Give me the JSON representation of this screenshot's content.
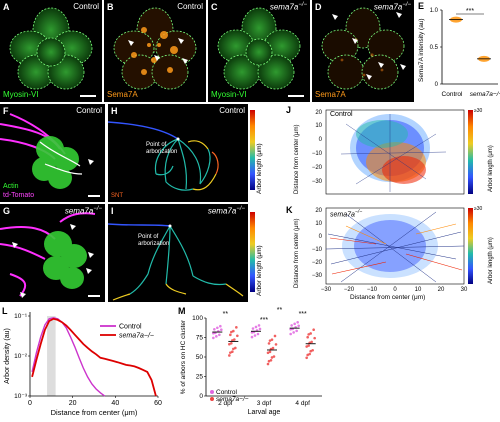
{
  "panels": {
    "A": {
      "letter": "A",
      "label": "Control",
      "stain": "Myosin-VI"
    },
    "B": {
      "letter": "B",
      "label": "Control",
      "stain": "Sema7A"
    },
    "C": {
      "letter": "C",
      "label": "sema7a",
      "label_sup": "−/−",
      "stain": "Myosin-VI"
    },
    "D": {
      "letter": "D",
      "label": "sema7a",
      "label_sup": "−/−",
      "stain": "Sema7A"
    },
    "E": {
      "letter": "E"
    },
    "F": {
      "letter": "F",
      "label": "Control",
      "stain1": "Actin",
      "stain2": "td-Tomato"
    },
    "G": {
      "letter": "G",
      "label": "sema7a",
      "label_sup": "−/−"
    },
    "H": {
      "letter": "H",
      "label": "Control",
      "annotation": "Point of arborization",
      "corner": "SNT"
    },
    "I": {
      "letter": "I",
      "label": "sema7a",
      "label_sup": "−/−",
      "annotation": "Point of arborization"
    },
    "J": {
      "letter": "J",
      "label": "Control"
    },
    "K": {
      "letter": "K",
      "label": "sema7a",
      "label_sup": "−/−"
    },
    "L": {
      "letter": "L"
    },
    "M": {
      "letter": "M"
    }
  },
  "colorbar": {
    "label": "Arbor length (μm)",
    "top": "≥30",
    "ticks": [
      "25",
      "20",
      "15",
      "10",
      "5",
      "0"
    ]
  },
  "axes": {
    "jk_y": "Distance from center (μm)",
    "jk_x": "Distance from center",
    "jk_x_unit": "(μm)",
    "jk_ticks": [
      "20",
      "10",
      "0",
      "−10",
      "−20",
      "−30"
    ],
    "jk_xticks": [
      "−30",
      "−20",
      "−10",
      "0",
      "10",
      "20",
      "30"
    ]
  },
  "chart_data": [
    {
      "panel": "E",
      "type": "scatter",
      "categories": [
        "Control",
        "sema7a−/−"
      ],
      "ylabel": "Sema7A intensity (au)",
      "ylim": [
        0,
        1.0
      ],
      "yticks": [
        "1.0",
        "0.5",
        "0"
      ],
      "values": [
        0.87,
        0.34
      ],
      "significance": "***"
    },
    {
      "panel": "L",
      "type": "line",
      "xlabel": "Distance from center (μm)",
      "ylabel": "Arbor density (au)",
      "xlim": [
        0,
        60
      ],
      "xticks": [
        "0",
        "20",
        "40",
        "60"
      ],
      "yticks": [
        "10⁻¹",
        "10⁻²",
        "10⁻³"
      ],
      "series": [
        {
          "name": "Control",
          "color": "#cc33cc",
          "x": [
            1,
            3,
            5,
            7,
            9,
            11,
            13,
            15,
            17,
            19,
            21,
            23,
            25,
            27,
            29,
            31,
            33,
            35
          ],
          "y": [
            0.004,
            0.012,
            0.03,
            0.06,
            0.085,
            0.09,
            0.085,
            0.07,
            0.05,
            0.03,
            0.017,
            0.009,
            0.005,
            0.003,
            0.002,
            0.0015,
            0.0012,
            0.001
          ]
        },
        {
          "name": "sema7a−/−",
          "color": "#dd0000",
          "x": [
            1,
            3,
            5,
            7,
            9,
            11,
            13,
            15,
            17,
            19,
            21,
            23,
            25,
            27,
            29,
            31,
            33,
            35,
            37,
            39,
            41,
            43,
            45,
            47,
            49,
            51,
            53,
            55,
            57,
            59
          ],
          "y": [
            0.003,
            0.008,
            0.02,
            0.045,
            0.075,
            0.085,
            0.08,
            0.07,
            0.058,
            0.045,
            0.034,
            0.026,
            0.02,
            0.016,
            0.013,
            0.011,
            0.009,
            0.0085,
            0.008,
            0.0075,
            0.007,
            0.0065,
            0.006,
            0.0058,
            0.0055,
            0.005,
            0.0045,
            0.004,
            0.0025,
            0.001
          ]
        }
      ]
    },
    {
      "panel": "M",
      "type": "scatter",
      "xlabel": "Larval age",
      "ylabel": "% of arbors on HC cluster",
      "ylim": [
        0,
        100
      ],
      "yticks": [
        "100",
        "75",
        "50",
        "25",
        "0"
      ],
      "categories": [
        "2 dpf",
        "3 dpf",
        "4 dpf"
      ],
      "series": [
        {
          "name": "Control",
          "color": "#e066e0",
          "means": [
            82,
            83,
            87
          ]
        },
        {
          "name": "sema7a−/−",
          "color": "#ee4444",
          "means": [
            70,
            59,
            67
          ]
        }
      ],
      "significance": [
        "**",
        "***",
        "***",
        "**"
      ]
    }
  ]
}
